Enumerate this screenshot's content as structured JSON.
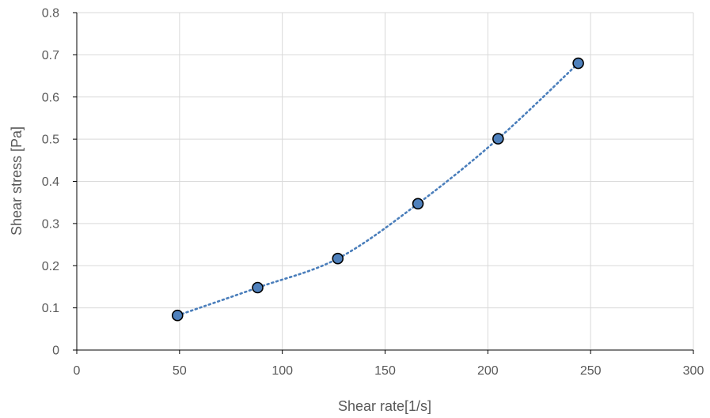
{
  "chart_data": {
    "type": "scatter",
    "title": "",
    "xlabel": "Shear rate[1/s]",
    "ylabel": "Shear stress [Pa]",
    "xlim": [
      0,
      300
    ],
    "ylim": [
      0,
      0.8
    ],
    "x_ticks": [
      0,
      50,
      100,
      150,
      200,
      250,
      300
    ],
    "y_ticks": [
      0,
      0.1,
      0.2,
      0.3,
      0.4,
      0.5,
      0.6,
      0.7,
      0.8
    ],
    "x_tick_labels": [
      "0",
      "50",
      "100",
      "150",
      "200",
      "250",
      "300"
    ],
    "y_tick_labels": [
      "0",
      "0.1",
      "0.2",
      "0.3",
      "0.4",
      "0.5",
      "0.6",
      "0.7",
      "0.8"
    ],
    "grid": true,
    "legend": "none",
    "series": [
      {
        "x": [
          49,
          88,
          127,
          166,
          205,
          244
        ],
        "y": [
          0.082,
          0.148,
          0.217,
          0.347,
          0.501,
          0.68
        ],
        "marker_color": "#4f81bd",
        "marker_edge_color": "#000000",
        "trendline": "polynomial (dotted)",
        "trendline_color": "#4a7ebb"
      }
    ]
  }
}
